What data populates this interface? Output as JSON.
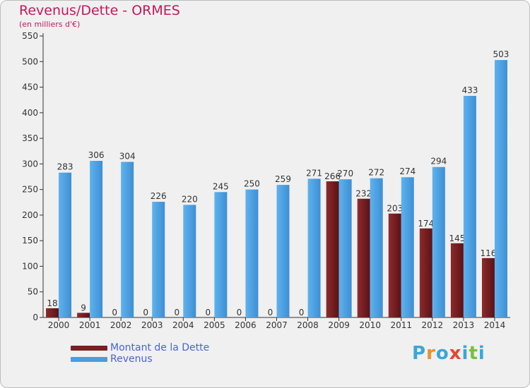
{
  "title": "Revenus/Dette - ORMES",
  "subtitle": "(en milliers d'€)",
  "chart_data": {
    "type": "bar",
    "categories": [
      "2000",
      "2001",
      "2002",
      "2003",
      "2004",
      "2005",
      "2006",
      "2007",
      "2008",
      "2009",
      "2010",
      "2011",
      "2012",
      "2013",
      "2014"
    ],
    "series": [
      {
        "name": "Montant de la Dette",
        "color": "#7a1f22",
        "values": [
          18,
          9,
          0,
          0,
          0,
          0,
          0,
          0,
          0,
          266,
          232,
          203,
          174,
          145,
          116
        ]
      },
      {
        "name": "Revenus",
        "color": "#4a9de0",
        "values": [
          283,
          306,
          304,
          226,
          220,
          245,
          250,
          259,
          271,
          270,
          272,
          274,
          294,
          433,
          503
        ]
      }
    ],
    "yticks": [
      0,
      50,
      100,
      150,
      200,
      250,
      300,
      350,
      400,
      450,
      500,
      550
    ],
    "ylim": [
      0,
      550
    ],
    "grid": false,
    "legend": "bottom-left"
  },
  "legend": {
    "items": [
      {
        "label": "Montant de la Dette",
        "color": "#7a1f22"
      },
      {
        "label": "Revenus",
        "color": "#4a9de0"
      }
    ]
  },
  "logo": {
    "letters": [
      "P",
      "r",
      "o",
      "x",
      "i",
      "t",
      "i"
    ],
    "colors": [
      "#3aa7d8",
      "#e8912d",
      "#3aa7d8",
      "#e2462e",
      "#3aa7d8",
      "#7bbf3a",
      "#3aa7d8"
    ]
  }
}
